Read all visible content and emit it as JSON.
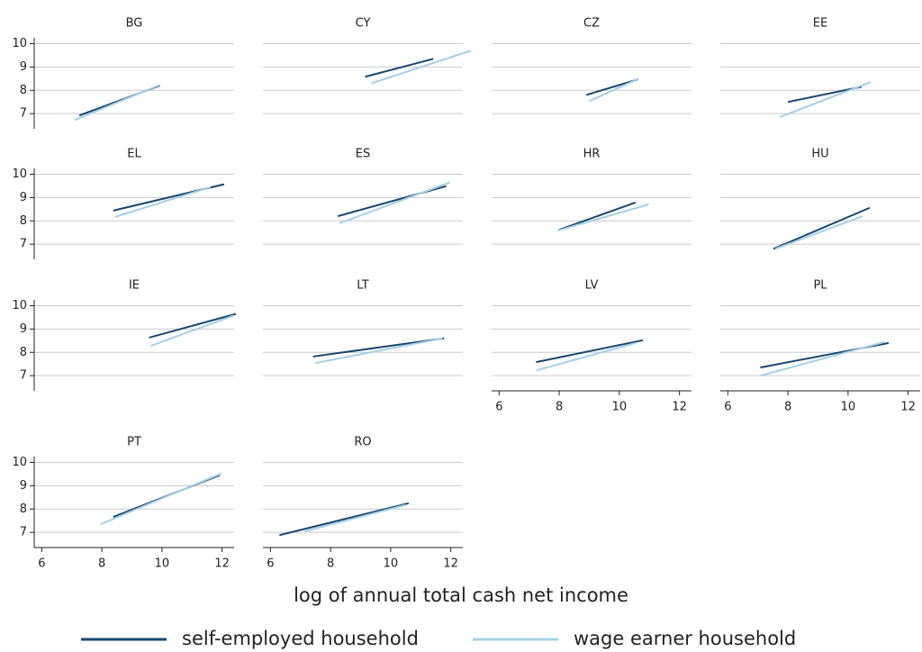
{
  "chart_data": [
    {
      "type": "line",
      "title": "BG",
      "xlim": [
        5.75,
        12.4
      ],
      "ylim": [
        6.35,
        10.25
      ],
      "yticks": [
        7,
        8,
        9,
        10
      ],
      "grid": true,
      "series": [
        {
          "x": [
            7.25,
            9.93
          ],
          "values": [
            6.92,
            8.2
          ]
        },
        {
          "x": [
            7.1,
            9.93
          ],
          "values": [
            6.73,
            8.23
          ]
        }
      ]
    },
    {
      "type": "line",
      "title": "CY",
      "xlim": [
        5.75,
        12.4
      ],
      "ylim": [
        6.35,
        10.25
      ],
      "grid": true,
      "series": [
        {
          "x": [
            9.15,
            11.42
          ],
          "values": [
            8.58,
            9.35
          ]
        },
        {
          "x": [
            9.36,
            12.67
          ],
          "values": [
            8.3,
            9.7
          ]
        }
      ]
    },
    {
      "type": "line",
      "title": "CZ",
      "xlim": [
        5.75,
        12.4
      ],
      "ylim": [
        6.35,
        10.25
      ],
      "grid": true,
      "series": [
        {
          "x": [
            8.9,
            10.6
          ],
          "values": [
            7.8,
            8.46
          ]
        },
        {
          "x": [
            9.0,
            10.65
          ],
          "values": [
            7.54,
            8.5
          ]
        }
      ]
    },
    {
      "type": "line",
      "title": "EE",
      "xlim": [
        5.75,
        12.4
      ],
      "ylim": [
        6.35,
        10.25
      ],
      "grid": true,
      "series": [
        {
          "x": [
            8.0,
            10.45
          ],
          "values": [
            7.5,
            8.15
          ]
        },
        {
          "x": [
            7.72,
            10.75
          ],
          "values": [
            6.85,
            8.35
          ]
        }
      ]
    },
    {
      "type": "line",
      "title": "EL",
      "xlim": [
        5.75,
        12.4
      ],
      "ylim": [
        6.35,
        10.25
      ],
      "yticks": [
        7,
        8,
        9,
        10
      ],
      "grid": true,
      "series": [
        {
          "x": [
            8.38,
            12.07
          ],
          "values": [
            8.44,
            9.57
          ]
        },
        {
          "x": [
            8.44,
            11.62
          ],
          "values": [
            8.17,
            9.45
          ]
        }
      ]
    },
    {
      "type": "line",
      "title": "ES",
      "xlim": [
        5.75,
        12.4
      ],
      "ylim": [
        6.35,
        10.25
      ],
      "grid": true,
      "series": [
        {
          "x": [
            8.24,
            11.85
          ],
          "values": [
            8.2,
            9.49
          ]
        },
        {
          "x": [
            8.3,
            11.97
          ],
          "values": [
            7.9,
            9.65
          ]
        }
      ]
    },
    {
      "type": "line",
      "title": "HR",
      "xlim": [
        5.75,
        12.4
      ],
      "ylim": [
        6.35,
        10.25
      ],
      "grid": true,
      "series": [
        {
          "x": [
            8.0,
            10.54
          ],
          "values": [
            7.62,
            8.79
          ]
        },
        {
          "x": [
            7.94,
            10.98
          ],
          "values": [
            7.58,
            8.71
          ]
        }
      ]
    },
    {
      "type": "line",
      "title": "HU",
      "xlim": [
        5.75,
        12.4
      ],
      "ylim": [
        6.35,
        10.25
      ],
      "grid": true,
      "series": [
        {
          "x": [
            7.52,
            10.72
          ],
          "values": [
            6.8,
            8.56
          ]
        },
        {
          "x": [
            7.58,
            10.48
          ],
          "values": [
            6.8,
            8.2
          ]
        }
      ]
    },
    {
      "type": "line",
      "title": "IE",
      "xlim": [
        5.75,
        12.4
      ],
      "ylim": [
        6.35,
        10.25
      ],
      "yticks": [
        7,
        8,
        9,
        10
      ],
      "grid": true,
      "series": [
        {
          "x": [
            9.57,
            12.46
          ],
          "values": [
            8.63,
            9.65
          ]
        },
        {
          "x": [
            9.63,
            12.37
          ],
          "values": [
            8.28,
            9.57
          ]
        }
      ]
    },
    {
      "type": "line",
      "title": "LT",
      "xlim": [
        5.75,
        12.4
      ],
      "ylim": [
        6.35,
        10.25
      ],
      "grid": true,
      "series": [
        {
          "x": [
            7.42,
            11.78
          ],
          "values": [
            7.82,
            8.6
          ]
        },
        {
          "x": [
            7.49,
            11.73
          ],
          "values": [
            7.54,
            8.6
          ]
        }
      ]
    },
    {
      "type": "line",
      "title": "LV",
      "xlim": [
        5.75,
        12.4
      ],
      "ylim": [
        6.35,
        10.25
      ],
      "xticks": [
        6,
        8,
        10,
        12
      ],
      "grid": true,
      "series": [
        {
          "x": [
            7.23,
            10.78
          ],
          "values": [
            7.58,
            8.52
          ]
        },
        {
          "x": [
            7.25,
            10.54
          ],
          "values": [
            7.23,
            8.4
          ]
        }
      ]
    },
    {
      "type": "line",
      "title": "PL",
      "xlim": [
        5.75,
        12.4
      ],
      "ylim": [
        6.35,
        10.25
      ],
      "xticks": [
        6,
        8,
        10,
        12
      ],
      "grid": true,
      "series": [
        {
          "x": [
            7.08,
            11.35
          ],
          "values": [
            7.35,
            8.4
          ]
        },
        {
          "x": [
            7.08,
            11.2
          ],
          "values": [
            7.0,
            8.44
          ]
        }
      ]
    },
    {
      "type": "line",
      "title": "PT",
      "xlim": [
        5.75,
        12.4
      ],
      "ylim": [
        6.35,
        10.25
      ],
      "yticks": [
        7,
        8,
        9,
        10
      ],
      "xticks": [
        6,
        8,
        10,
        12
      ],
      "grid": true,
      "series": [
        {
          "x": [
            8.38,
            11.92
          ],
          "values": [
            7.66,
            9.45
          ]
        },
        {
          "x": [
            7.96,
            11.98
          ],
          "values": [
            7.35,
            9.53
          ]
        }
      ]
    },
    {
      "type": "line",
      "title": "RO",
      "xlim": [
        5.75,
        12.4
      ],
      "ylim": [
        6.35,
        10.25
      ],
      "xticks": [
        6,
        8,
        10,
        12
      ],
      "grid": true,
      "series": [
        {
          "x": [
            6.3,
            10.6
          ],
          "values": [
            6.88,
            8.25
          ]
        },
        {
          "x": [
            7.13,
            10.48
          ],
          "values": [
            7.04,
            8.17
          ]
        }
      ]
    }
  ],
  "xlabel": "log of annual total cash net income",
  "legend": [
    {
      "name": "self-employed household",
      "color": "#1a476f"
    },
    {
      "name": "wage earner household",
      "color": "#a6d0e4"
    }
  ]
}
